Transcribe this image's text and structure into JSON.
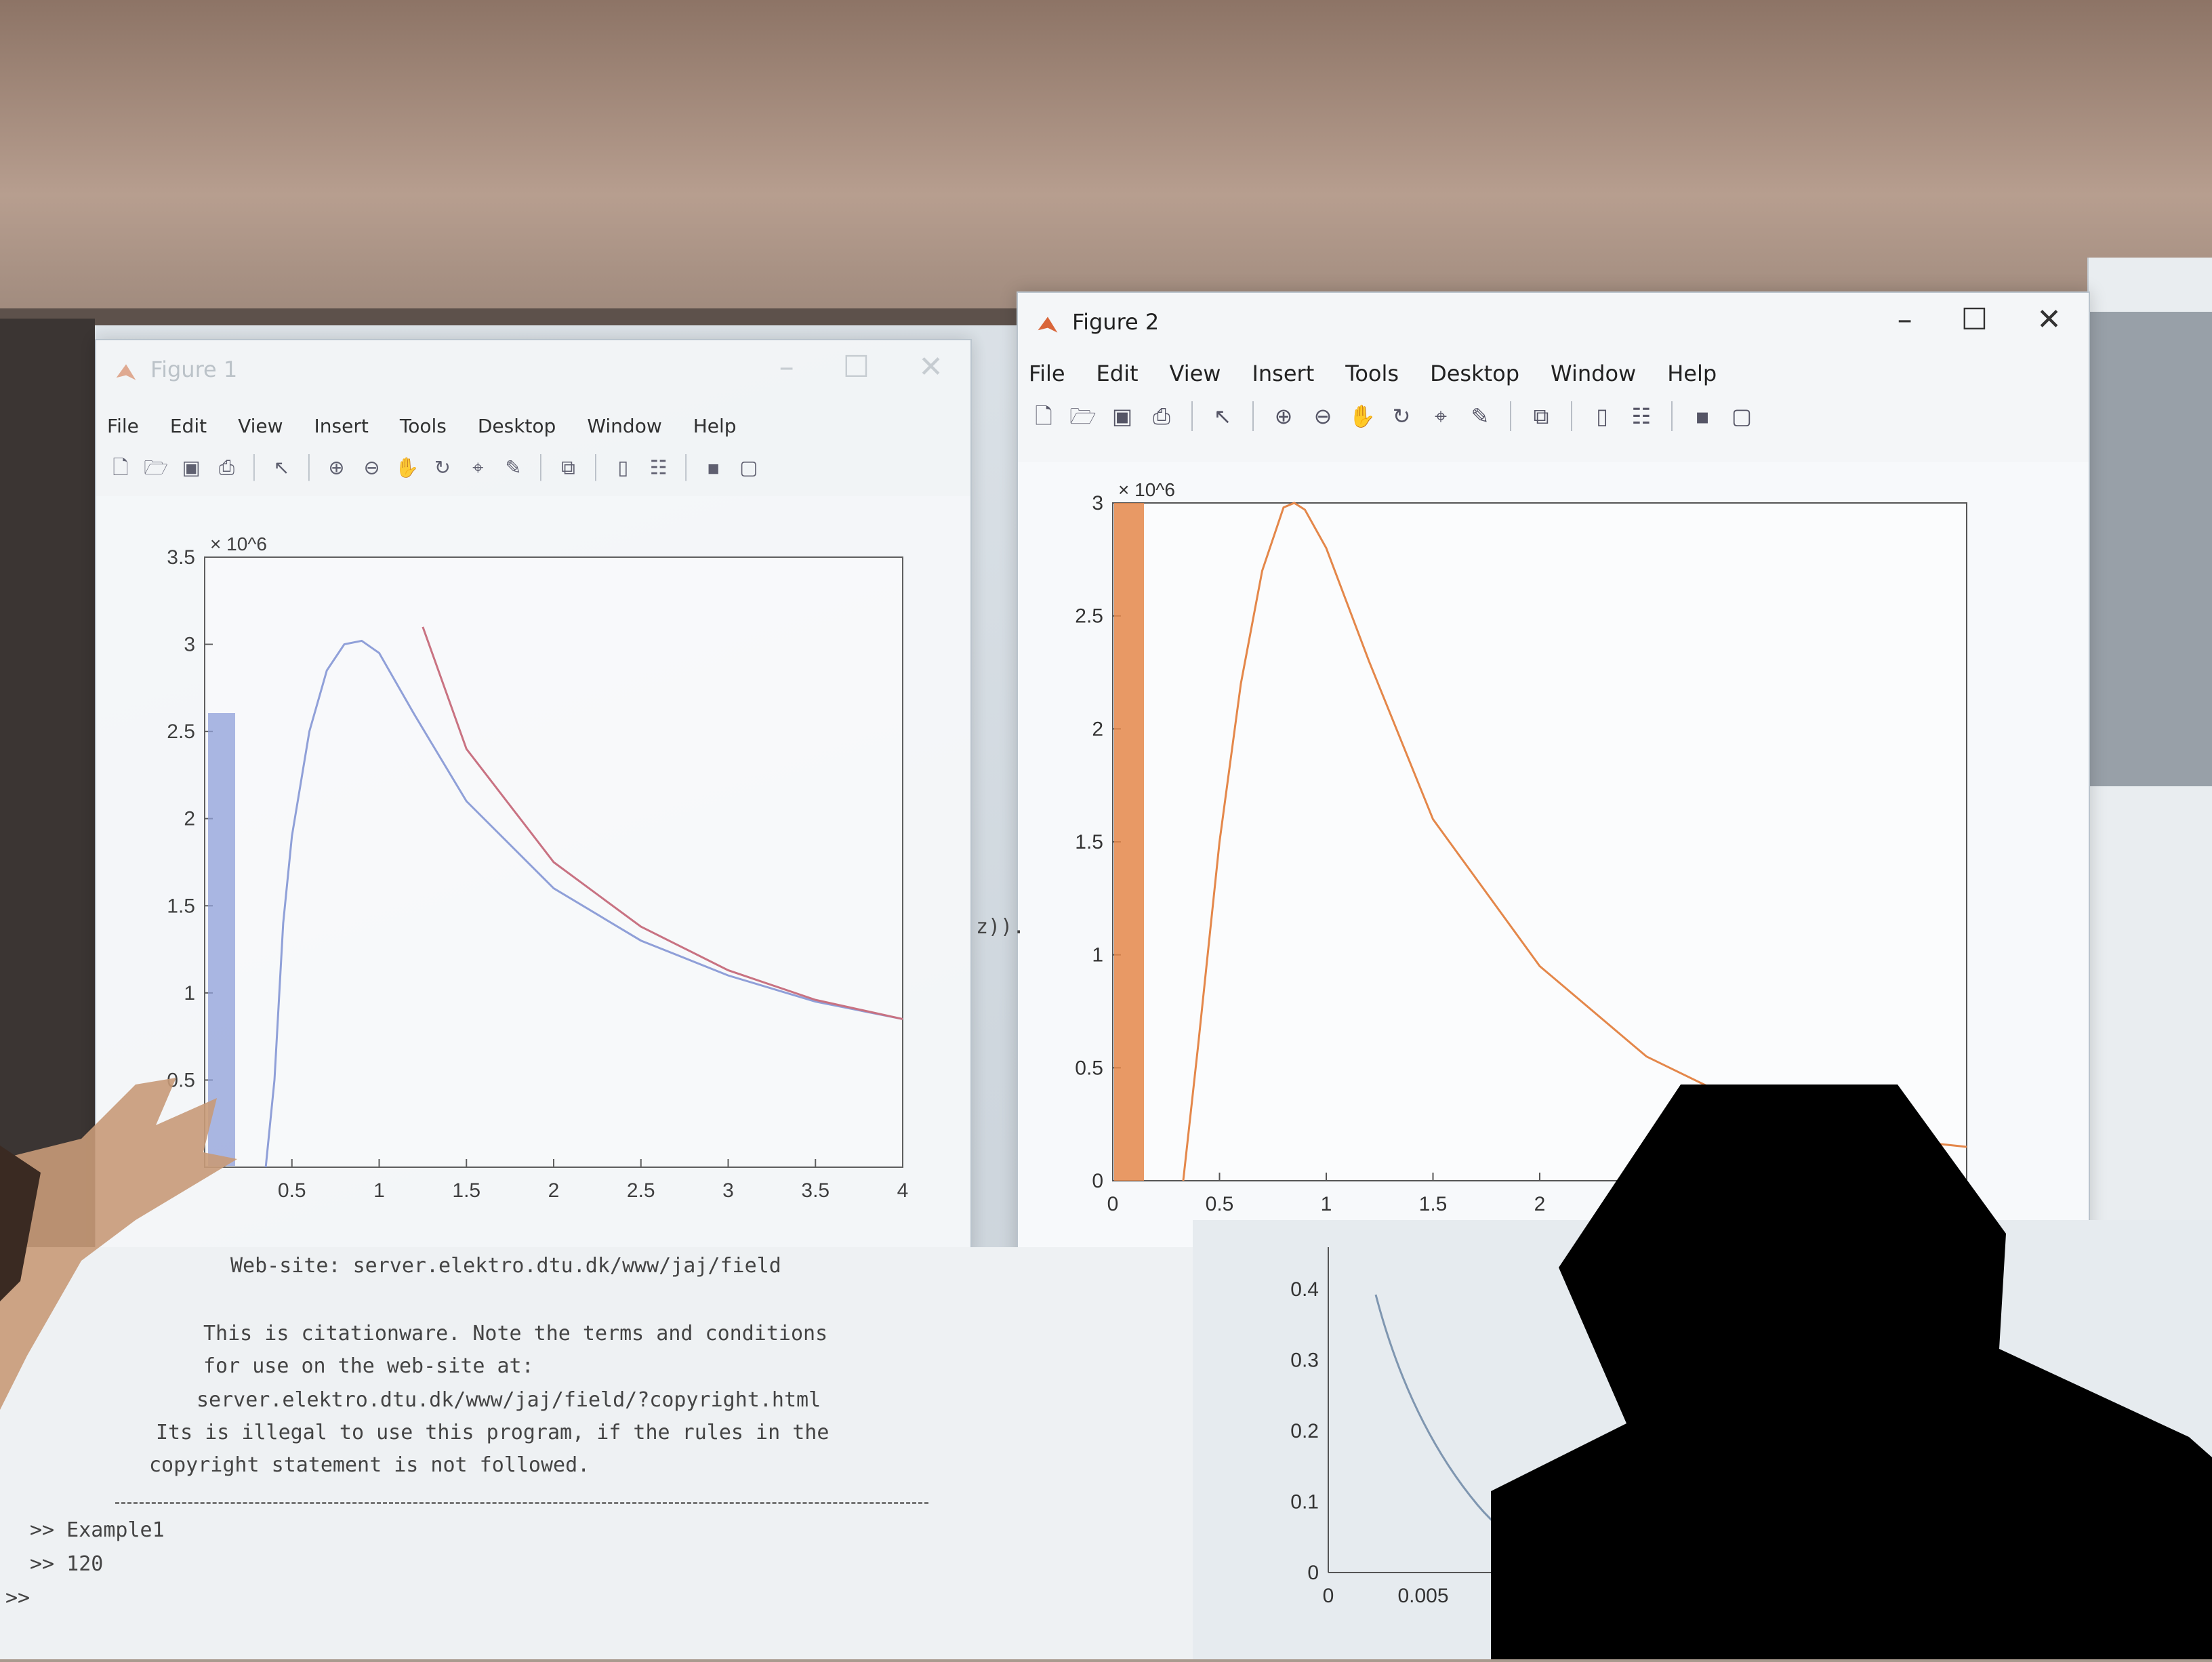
{
  "figure1": {
    "title": "Figure 1",
    "menu": [
      "File",
      "Edit",
      "View",
      "Insert",
      "Tools",
      "Desktop",
      "Window",
      "Help"
    ]
  },
  "figure2": {
    "title": "Figure 2",
    "menu": [
      "File",
      "Edit",
      "View",
      "Insert",
      "Tools",
      "Desktop",
      "Window",
      "Help"
    ]
  },
  "toolbar_icons": [
    "new-file-icon",
    "open-folder-icon",
    "save-icon",
    "print-icon",
    "pointer-icon",
    "zoom-in-icon",
    "zoom-out-icon",
    "pan-hand-icon",
    "rotate-3d-icon",
    "data-cursor-icon",
    "brush-icon",
    "link-plot-icon",
    "colorbar-icon",
    "legend-icon",
    "hide-plot-tools-icon",
    "show-plot-tools-icon"
  ],
  "console": {
    "lines": [
      "Web-site: server.elektro.dtu.dk/www/jaj/field",
      "This is citationware. Note the terms and conditions",
      "for use on the web-site at:",
      "server.elektro.dtu.dk/www/jaj/field/?copyright.html",
      "Its is illegal to use this program, if the rules in the",
      "copyright statement is not followed."
    ],
    "history": [
      ">> Example1",
      ">> 120",
      ">>"
    ]
  },
  "side_fragment": "z)).",
  "chart_data": [
    {
      "type": "line",
      "figure": "Figure 1",
      "title": "",
      "xlabel": "",
      "ylabel": "",
      "exponent_label": "× 10^6",
      "xlim": [
        0,
        4
      ],
      "ylim": [
        0,
        3.5
      ],
      "xticks": [
        "0.5",
        "1",
        "1.5",
        "2",
        "2.5",
        "3",
        "3.5",
        "4"
      ],
      "yticks": [
        "0.5",
        "1",
        "1.5",
        "2",
        "2.5",
        "3",
        "3.5"
      ],
      "series": [
        {
          "color": "#8a9bd8",
          "x": [
            0.35,
            0.4,
            0.45,
            0.5,
            0.6,
            0.7,
            0.8,
            0.9,
            1.0,
            1.2,
            1.5,
            2.0,
            2.5,
            3.0,
            3.5,
            4.0
          ],
          "values": [
            0.0,
            0.5,
            1.4,
            1.9,
            2.5,
            2.85,
            3.0,
            3.02,
            2.95,
            2.6,
            2.1,
            1.6,
            1.3,
            1.1,
            0.95,
            0.85
          ]
        },
        {
          "color": "#c86a7a",
          "x": [
            1.25,
            1.5,
            2.0,
            2.5,
            3.0,
            3.5,
            4.0
          ],
          "values": [
            3.1,
            2.4,
            1.75,
            1.38,
            1.13,
            0.96,
            0.85
          ]
        }
      ]
    },
    {
      "type": "line",
      "figure": "Figure 2",
      "title": "",
      "xlabel": "",
      "ylabel": "",
      "exponent_label": "× 10^6",
      "xlim": [
        0,
        4
      ],
      "ylim": [
        0,
        3
      ],
      "xticks": [
        "0",
        "0.5",
        "1",
        "1.5",
        "2"
      ],
      "yticks": [
        "0",
        "0.5",
        "1",
        "1.5",
        "2",
        "2.5",
        "3"
      ],
      "series": [
        {
          "color": "#e4874a",
          "x": [
            0.33,
            0.4,
            0.5,
            0.6,
            0.7,
            0.8,
            0.85,
            0.9,
            1.0,
            1.2,
            1.5,
            2.0,
            2.5,
            3.0,
            3.5,
            4.0
          ],
          "values": [
            0.0,
            0.6,
            1.5,
            2.2,
            2.7,
            2.98,
            3.0,
            2.97,
            2.8,
            2.3,
            1.6,
            0.95,
            0.55,
            0.32,
            0.2,
            0.15
          ]
        }
      ]
    },
    {
      "type": "line",
      "figure": "background",
      "xticks": [
        "0",
        "0.005"
      ],
      "yticks": [
        "0",
        "0.1",
        "0.2",
        "0.3",
        "0.4"
      ]
    }
  ]
}
